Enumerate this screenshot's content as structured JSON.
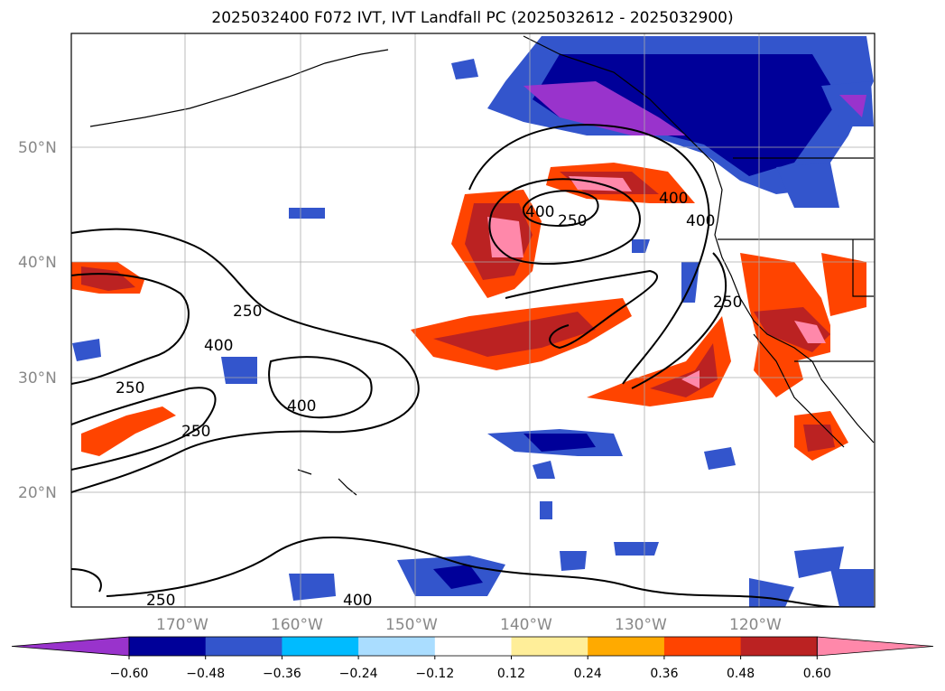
{
  "title": "2025032400 F072 IVT, IVT Landfall PC (2025032612 - 2025032900)",
  "lat_labels": [
    "50°N",
    "40°N",
    "30°N",
    "20°N"
  ],
  "lon_labels": [
    "170°W",
    "160°W",
    "150°W",
    "140°W",
    "130°W",
    "120°W"
  ],
  "contour_labels": [
    "250",
    "400",
    "250",
    "400",
    "250",
    "400",
    "250",
    "400",
    "400",
    "250",
    "250",
    "400"
  ],
  "colorbar": {
    "colors": [
      "#9933cc",
      "#000099",
      "#3355cc",
      "#00bbff",
      "#aaddff",
      "#ffffff",
      "#ffee99",
      "#ffaa00",
      "#ff4400",
      "#bb2222",
      "#ff88aa"
    ],
    "ticks": [
      "−0.60",
      "−0.48",
      "−0.36",
      "−0.24",
      "−0.12",
      "0.12",
      "0.24",
      "0.36",
      "0.48",
      "0.60"
    ]
  }
}
